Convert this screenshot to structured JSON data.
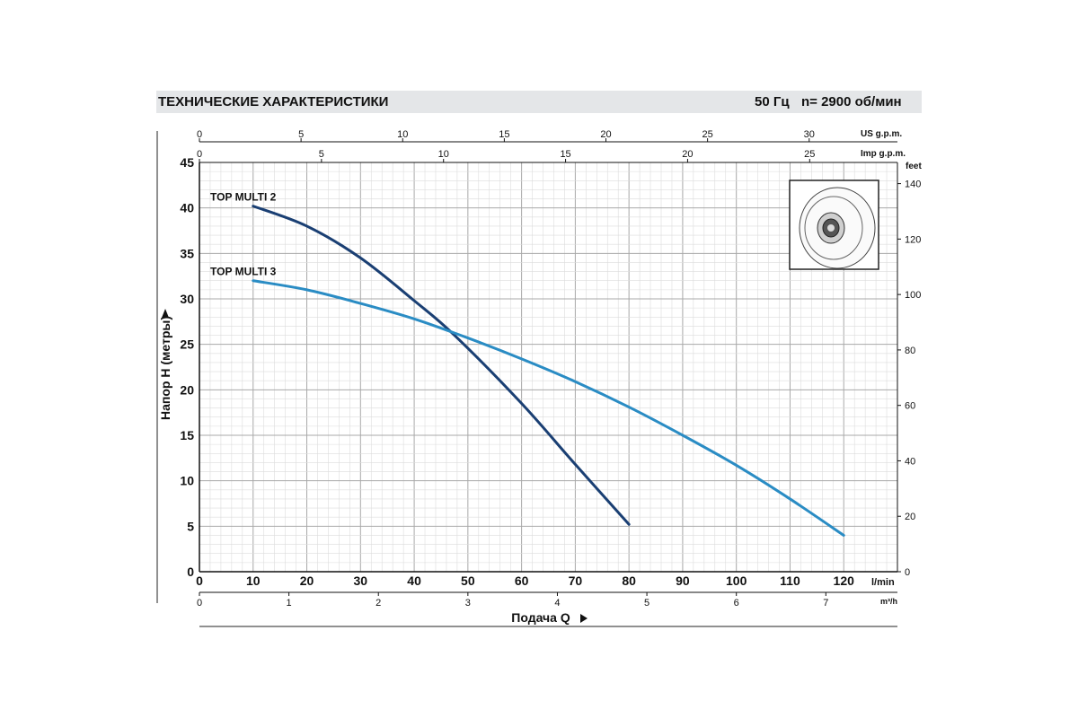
{
  "header": {
    "title": "ТЕХНИЧЕСКИЕ ХАРАКТЕРИСТИКИ",
    "frequency": "50 Гц",
    "speed": "n= 2900  об/мин"
  },
  "chart_data": {
    "type": "line",
    "ylabel": "Напор  H (метры)",
    "xlabel": "Подача Q",
    "grid": true,
    "x_axis": {
      "unit": "l/min",
      "range": [
        0,
        130
      ],
      "ticks": [
        0,
        10,
        20,
        30,
        40,
        50,
        60,
        70,
        80,
        90,
        100,
        110,
        120
      ]
    },
    "y_axis": {
      "unit": "m",
      "range": [
        0,
        45
      ],
      "ticks": [
        0,
        5,
        10,
        15,
        20,
        25,
        30,
        35,
        40,
        45
      ]
    },
    "x_axis_m3h": {
      "unit": "m³/h",
      "ticks": [
        0,
        1,
        2,
        3,
        4,
        5,
        6,
        7
      ]
    },
    "x_axis_us": {
      "unit": "US g.p.m.",
      "ticks": [
        0,
        5,
        10,
        15,
        20,
        25,
        30
      ]
    },
    "x_axis_imp": {
      "unit": "Imp g.p.m.",
      "ticks": [
        0,
        5,
        10,
        15,
        20,
        25
      ]
    },
    "y_axis_feet": {
      "unit": "feet",
      "ticks": [
        0,
        20,
        40,
        60,
        80,
        100,
        120,
        140
      ]
    },
    "colors": {
      "top_multi_2": "#1a3f73",
      "top_multi_3": "#2a8cc4"
    },
    "series": [
      {
        "name": "TOP MULTI 2",
        "x": [
          10,
          20,
          30,
          40,
          47.5,
          60,
          70,
          80
        ],
        "y": [
          40.2,
          38.0,
          34.5,
          29.8,
          26.0,
          18.5,
          11.8,
          5.2
        ]
      },
      {
        "name": "TOP MULTI 3",
        "x": [
          10,
          20,
          30,
          40,
          50,
          60,
          70,
          80,
          90,
          100,
          110,
          120
        ],
        "y": [
          32.0,
          31.0,
          29.5,
          27.8,
          25.7,
          23.4,
          20.9,
          18.1,
          15.0,
          11.7,
          8.0,
          4.0
        ]
      }
    ]
  }
}
